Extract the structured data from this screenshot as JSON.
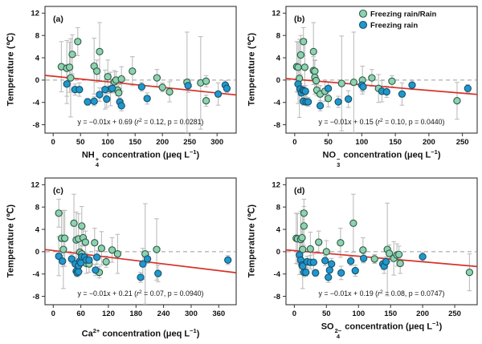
{
  "figure": {
    "ylabel": "Temperature (℃)",
    "colors": {
      "rain_mix_fill": "#8fd2ae",
      "rain_mix_stroke": "#2c5a4a",
      "freezing_fill": "#1f98cc",
      "freezing_stroke": "#17506b",
      "regression": "#d63229",
      "zero_line": "#9a9a9a",
      "error_bar": "#bdbdbd",
      "axis": "#333333"
    },
    "legend": [
      {
        "label": "Freezing rain/Rain",
        "fill": "#8fd2ae",
        "stroke": "#2c5a4a"
      },
      {
        "label": "Freezing rain",
        "fill": "#1f98cc",
        "stroke": "#17506b"
      }
    ]
  },
  "chart_data": [
    {
      "id": "a",
      "type": "scatter",
      "panel_label": "(a)",
      "xlabel": {
        "base": "NH",
        "sub": "4",
        "sup": "+",
        "rest": " concentration (μeq L",
        "exp": "−1",
        "close": ")"
      },
      "ylabel": "Temperature (℃)",
      "xlim": [
        -15,
        335
      ],
      "ylim": [
        -9.5,
        13.2
      ],
      "xticks": [
        0,
        50,
        100,
        150,
        200,
        250,
        300
      ],
      "yticks": [
        -8,
        -4,
        0,
        4,
        8,
        12
      ],
      "fit": {
        "slope": -0.01,
        "intercept": 0.69,
        "equation": "y = −0.01x + 0.69",
        "r2": "0.12",
        "p": "0.0281"
      },
      "show_legend": false,
      "series": [
        {
          "name": "Freezing rain/Rain",
          "points": [
            [
              15,
              2.4,
              4.5
            ],
            [
              25,
              2.1,
              5.0
            ],
            [
              30,
              2.3,
              4.5
            ],
            [
              32,
              0.4,
              7.0
            ],
            [
              35,
              4.6,
              3.5
            ],
            [
              45,
              6.9,
              2.5
            ],
            [
              75,
              2.5,
              5.0
            ],
            [
              80,
              1.6,
              2.0
            ],
            [
              85,
              5.1,
              5.2
            ],
            [
              100,
              0.6,
              3.0
            ],
            [
              105,
              -1.6,
              3.0
            ],
            [
              112,
              -0.3,
              2.0
            ],
            [
              115,
              0.0,
              1.5
            ],
            [
              118,
              -1.8,
              1.0
            ],
            [
              120,
              -2.3,
              1.5
            ],
            [
              125,
              0.2,
              2.2
            ],
            [
              145,
              1.6,
              2.6
            ],
            [
              190,
              0.4,
              1.5
            ],
            [
              200,
              -1.3,
              0.8
            ],
            [
              213,
              -2.1,
              1.8
            ],
            [
              245,
              -0.4,
              9.0
            ],
            [
              270,
              -0.5,
              8.3
            ],
            [
              280,
              -0.2,
              1.0
            ],
            [
              280,
              -3.7,
              1.0
            ]
          ]
        },
        {
          "name": "Freezing rain",
          "points": [
            [
              25,
              -0.7,
              3.5
            ],
            [
              40,
              -1.7,
              1.0
            ],
            [
              48,
              -1.7,
              1.2
            ],
            [
              63,
              -3.9,
              0.6
            ],
            [
              75,
              -3.8,
              0.8
            ],
            [
              85,
              -2.6,
              1.2
            ],
            [
              95,
              -1.7,
              3.5
            ],
            [
              98,
              -3.4,
              1.5
            ],
            [
              108,
              -1.5,
              0.8
            ],
            [
              122,
              -3.9,
              0.7
            ],
            [
              125,
              -4.6,
              0.9
            ],
            [
              162,
              -1.2,
              0.8
            ],
            [
              172,
              -3.3,
              1.0
            ],
            [
              247,
              -1.0,
              1.2
            ],
            [
              302,
              -2.5,
              2.0
            ],
            [
              315,
              -0.9,
              0.8
            ],
            [
              318,
              -1.5,
              0.7
            ]
          ]
        }
      ]
    },
    {
      "id": "b",
      "type": "scatter",
      "panel_label": "(b)",
      "xlabel": {
        "base": "NO",
        "sub": "3",
        "sup": "−",
        "rest": " concentration (μeq L",
        "exp": "−1",
        "close": ")"
      },
      "ylabel": "Temperature (℃)",
      "xlim": [
        -13,
        272
      ],
      "ylim": [
        -9.5,
        13.2
      ],
      "xticks": [
        0,
        50,
        100,
        150,
        200,
        250
      ],
      "yticks": [
        -8,
        -4,
        0,
        4,
        8,
        12
      ],
      "fit": {
        "slope": -0.01,
        "intercept": 0.15,
        "equation": "y = −0.01x + 0.15",
        "r2": "0.10",
        "p": "0.0440"
      },
      "show_legend": true,
      "series": [
        {
          "name": "Freezing rain/Rain",
          "points": [
            [
              3,
              2.4,
              4.5
            ],
            [
              5,
              2.3,
              4.5
            ],
            [
              7,
              0.3,
              7.0
            ],
            [
              9,
              4.5,
              3.5
            ],
            [
              13,
              6.9,
              2.5
            ],
            [
              15,
              2.3,
              5.0
            ],
            [
              28,
              5.1,
              5.2
            ],
            [
              28,
              1.7,
              2.5
            ],
            [
              30,
              1.6,
              2.0
            ],
            [
              30,
              0.5,
              3.0
            ],
            [
              32,
              -0.1,
              2.0
            ],
            [
              33,
              -1.8,
              1.0
            ],
            [
              38,
              -2.5,
              1.5
            ],
            [
              45,
              -2.0,
              1.8
            ],
            [
              50,
              -3.3,
              1.5
            ],
            [
              70,
              -0.6,
              8.5
            ],
            [
              88,
              -0.4,
              9.0
            ],
            [
              101,
              0.0,
              2.5
            ],
            [
              115,
              0.4,
              1.5
            ],
            [
              125,
              -1.5,
              2.5
            ],
            [
              145,
              -0.2,
              1.0
            ],
            [
              242,
              -3.7,
              3.3
            ]
          ]
        },
        {
          "name": "Freezing rain",
          "points": [
            [
              5,
              -0.7,
              3.5
            ],
            [
              8,
              -1.6,
              1.0
            ],
            [
              10,
              -2.3,
              1.2
            ],
            [
              12,
              -1.8,
              0.8
            ],
            [
              14,
              -1.9,
              0.9
            ],
            [
              16,
              -2.0,
              1.0
            ],
            [
              13,
              -3.8,
              0.7
            ],
            [
              17,
              -3.9,
              0.6
            ],
            [
              20,
              -3.9,
              0.8
            ],
            [
              38,
              -4.6,
              0.9
            ],
            [
              50,
              -1.5,
              1.2
            ],
            [
              65,
              -3.9,
              1.0
            ],
            [
              80,
              -3.4,
              1.5
            ],
            [
              100,
              -0.9,
              1.0
            ],
            [
              102,
              -1.2,
              0.9
            ],
            [
              130,
              -2.0,
              1.9
            ],
            [
              137,
              -2.1,
              1.0
            ],
            [
              160,
              -2.5,
              2.0
            ],
            [
              175,
              -0.9,
              0.8
            ],
            [
              258,
              -1.5,
              0.7
            ]
          ]
        }
      ]
    },
    {
      "id": "c",
      "type": "scatter",
      "panel_label": "(c)",
      "xlabel": {
        "base": "Ca",
        "sub": "",
        "sup": "2+",
        "rest": " concentration (μeq L",
        "exp": "−1",
        "close": ")"
      },
      "ylabel": "Temperature (℃)",
      "xlim": [
        -18,
        398
      ],
      "ylim": [
        -9.5,
        13.2
      ],
      "xticks": [
        0,
        60,
        120,
        180,
        240,
        300,
        360
      ],
      "yticks": [
        -8,
        -4,
        0,
        4,
        8,
        12
      ],
      "fit": {
        "slope": -0.01,
        "intercept": 0.21,
        "equation": "y = −0.01x + 0.21",
        "r2": "0.07",
        "p": "0.0940"
      },
      "show_legend": false,
      "series": [
        {
          "name": "Freezing rain/Rain",
          "points": [
            [
              12,
              6.9,
              2.5
            ],
            [
              18,
              2.4,
              4.5
            ],
            [
              25,
              2.4,
              5.0
            ],
            [
              22,
              0.4,
              7.0
            ],
            [
              45,
              5.1,
              5.2
            ],
            [
              50,
              2.1,
              5.0
            ],
            [
              55,
              2.3,
              4.5
            ],
            [
              62,
              4.6,
              3.5
            ],
            [
              65,
              2.5,
              1.5
            ],
            [
              70,
              1.7,
              2.0
            ],
            [
              58,
              -0.1,
              2.0
            ],
            [
              62,
              -0.4,
              1.5
            ],
            [
              72,
              -2.1,
              1.8
            ],
            [
              78,
              -2.2,
              1.5
            ],
            [
              90,
              1.6,
              2.6
            ],
            [
              105,
              0.6,
              3.0
            ],
            [
              100,
              -3.7,
              1.0
            ],
            [
              115,
              -1.8,
              1.0
            ],
            [
              128,
              0.3,
              2.2
            ],
            [
              140,
              -0.4,
              3.5
            ],
            [
              200,
              -0.4,
              9.0
            ],
            [
              225,
              0.4,
              5.5
            ]
          ]
        },
        {
          "name": "Freezing rain",
          "points": [
            [
              12,
              -0.8,
              3.5
            ],
            [
              20,
              -1.7,
              1.0
            ],
            [
              40,
              -1.3,
              0.8
            ],
            [
              48,
              -2.2,
              1.2
            ],
            [
              50,
              -3.5,
              0.8
            ],
            [
              52,
              -3.8,
              0.7
            ],
            [
              55,
              -3.6,
              0.6
            ],
            [
              55,
              -2.5,
              1.2
            ],
            [
              58,
              -1.7,
              1.0
            ],
            [
              60,
              -2.0,
              1.5
            ],
            [
              62,
              -0.9,
              1.0
            ],
            [
              68,
              -1.0,
              0.9
            ],
            [
              72,
              -1.5,
              0.8
            ],
            [
              78,
              -1.5,
              0.9
            ],
            [
              95,
              -1.0,
              1.2
            ],
            [
              92,
              -3.3,
              1.0
            ],
            [
              190,
              -4.6,
              0.9
            ],
            [
              195,
              -2.2,
              2.8
            ],
            [
              205,
              -1.3,
              0.8
            ],
            [
              228,
              -3.9,
              1.5
            ],
            [
              380,
              -1.5,
              0.8
            ]
          ]
        }
      ]
    },
    {
      "id": "d",
      "type": "scatter",
      "panel_label": "(d)",
      "xlabel": {
        "base": "SO",
        "sub": "4",
        "sup": "2−",
        "rest": " concentration (μeq L",
        "exp": "−1",
        "close": ")"
      },
      "ylabel": "Temperature (℃)",
      "xlim": [
        -13,
        285
      ],
      "ylim": [
        -9.5,
        13.2
      ],
      "xticks": [
        0,
        50,
        100,
        150,
        200,
        250
      ],
      "yticks": [
        -8,
        -4,
        0,
        4,
        8,
        12
      ],
      "fit": {
        "slope": -0.01,
        "intercept": 0.19,
        "equation": "y = −0.01x + 0.19",
        "r2": "0.08",
        "p": "0.0747"
      },
      "show_legend": false,
      "series": [
        {
          "name": "Freezing rain/Rain",
          "points": [
            [
              3,
              2.4,
              4.5
            ],
            [
              5,
              2.3,
              4.5
            ],
            [
              10,
              2.2,
              5.0
            ],
            [
              12,
              2.5,
              1.5
            ],
            [
              13,
              0.4,
              7.0
            ],
            [
              15,
              6.9,
              2.5
            ],
            [
              15,
              4.6,
              3.5
            ],
            [
              25,
              0.5,
              3.0
            ],
            [
              38,
              1.7,
              2.0
            ],
            [
              50,
              0.0,
              2.0
            ],
            [
              72,
              1.6,
              2.6
            ],
            [
              92,
              5.1,
              5.2
            ],
            [
              107,
              0.3,
              2.2
            ],
            [
              125,
              -1.3,
              0.8
            ],
            [
              145,
              0.4,
              8.3
            ],
            [
              148,
              -0.3,
              1.5
            ],
            [
              155,
              -1.2,
              3.0
            ],
            [
              160,
              -0.6,
              2.0
            ],
            [
              163,
              -0.5,
              1.5
            ],
            [
              165,
              -2.1,
              1.8
            ],
            [
              273,
              -3.7,
              3.3
            ]
          ]
        },
        {
          "name": "Freezing rain",
          "points": [
            [
              8,
              -0.6,
              3.5
            ],
            [
              10,
              -1.5,
              1.0
            ],
            [
              12,
              -2.4,
              1.2
            ],
            [
              13,
              -2.6,
              1.0
            ],
            [
              15,
              -3.7,
              0.8
            ],
            [
              18,
              -3.7,
              0.7
            ],
            [
              20,
              -1.8,
              1.0
            ],
            [
              25,
              -1.9,
              1.2
            ],
            [
              30,
              -1.9,
              1.5
            ],
            [
              33,
              -3.8,
              0.6
            ],
            [
              48,
              -1.6,
              0.9
            ],
            [
              53,
              -4.6,
              0.9
            ],
            [
              55,
              -3.3,
              1.5
            ],
            [
              58,
              -2.2,
              1.0
            ],
            [
              73,
              -3.8,
              1.2
            ],
            [
              88,
              -1.7,
              0.8
            ],
            [
              95,
              -3.4,
              1.0
            ],
            [
              108,
              -1.2,
              0.8
            ],
            [
              138,
              -2.2,
              1.0
            ],
            [
              140,
              -2.6,
              1.3
            ],
            [
              143,
              -1.8,
              0.9
            ],
            [
              200,
              -0.9,
              0.8
            ]
          ]
        }
      ]
    }
  ]
}
